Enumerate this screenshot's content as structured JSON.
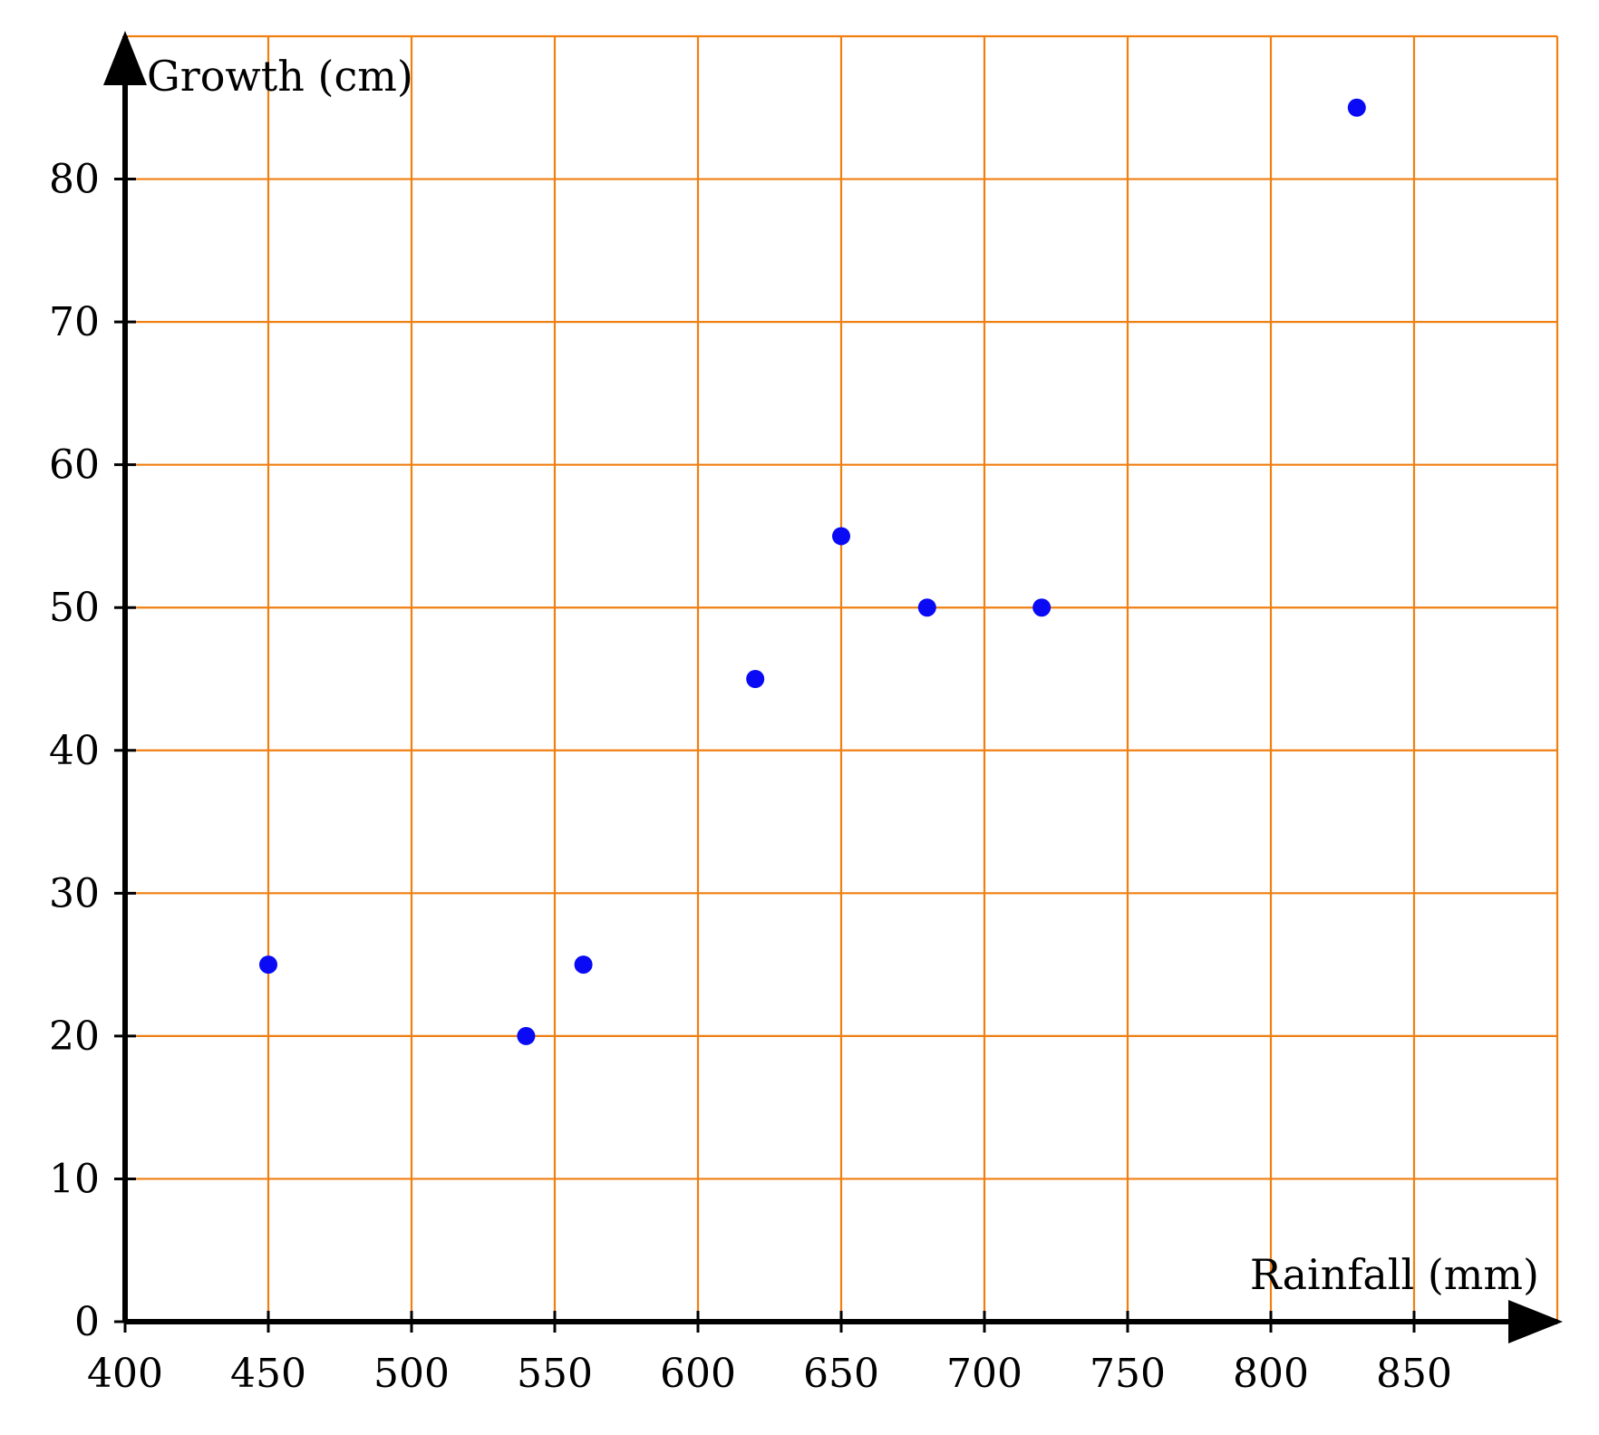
{
  "chart_data": {
    "type": "scatter",
    "xlabel": "Rainfall (mm)",
    "ylabel": "Growth (cm)",
    "xlim": [
      400,
      900
    ],
    "ylim": [
      0,
      90
    ],
    "x_ticks": [
      400,
      450,
      500,
      550,
      600,
      650,
      700,
      750,
      800,
      850
    ],
    "y_ticks": [
      0,
      10,
      20,
      30,
      40,
      50,
      60,
      70,
      80
    ],
    "grid": true,
    "grid_color": "#f07f12",
    "point_color": "#0a0af5",
    "points": [
      {
        "x": 450,
        "y": 25
      },
      {
        "x": 540,
        "y": 20
      },
      {
        "x": 560,
        "y": 25
      },
      {
        "x": 620,
        "y": 45
      },
      {
        "x": 650,
        "y": 55
      },
      {
        "x": 680,
        "y": 50
      },
      {
        "x": 720,
        "y": 50
      },
      {
        "x": 830,
        "y": 85
      }
    ]
  }
}
